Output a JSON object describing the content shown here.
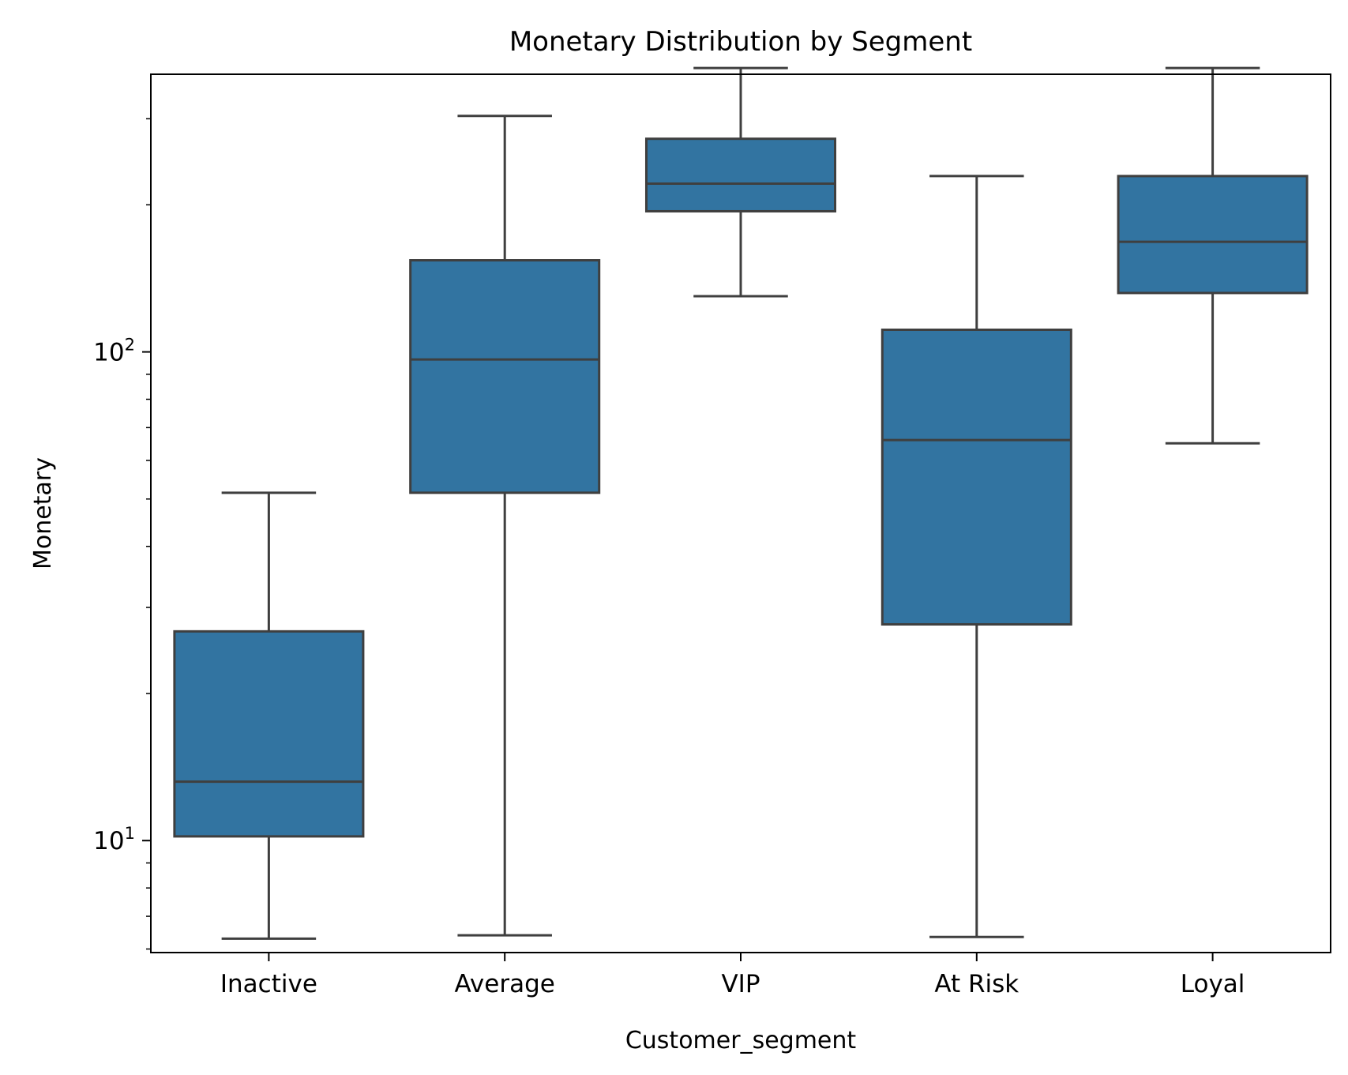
{
  "chart_data": {
    "type": "box",
    "title": "Monetary Distribution by Segment",
    "xlabel": "Customer_segment",
    "ylabel": "Monetary",
    "yscale": "log",
    "ylim": [
      5.9,
      370
    ],
    "categories": [
      "Inactive",
      "Average",
      "VIP",
      "At Risk",
      "Loyal"
    ],
    "boxes": [
      {
        "category": "Inactive",
        "whisker_low": 6.3,
        "q1": 10.2,
        "median": 13.2,
        "q3": 26.8,
        "whisker_high": 51.5
      },
      {
        "category": "Average",
        "whisker_low": 6.4,
        "q1": 51.5,
        "median": 96.5,
        "q3": 154.0,
        "whisker_high": 304.0
      },
      {
        "category": "VIP",
        "whisker_low": 130.0,
        "q1": 194.0,
        "median": 221.0,
        "q3": 273.0,
        "whisker_high": 381.0
      },
      {
        "category": "At Risk",
        "whisker_low": 6.35,
        "q1": 27.7,
        "median": 66.0,
        "q3": 111.0,
        "whisker_high": 229.0
      },
      {
        "category": "Loyal",
        "whisker_low": 65.0,
        "q1": 132.0,
        "median": 168.0,
        "q3": 229.0,
        "whisker_high": 381.0
      }
    ],
    "y_ticks": [
      {
        "base": "10",
        "exp": "1",
        "value": 10
      },
      {
        "base": "10",
        "exp": "2",
        "value": 100
      }
    ],
    "box_color": "#3274a1",
    "line_color": "#3f3f3f",
    "grid": false,
    "legend": false
  }
}
